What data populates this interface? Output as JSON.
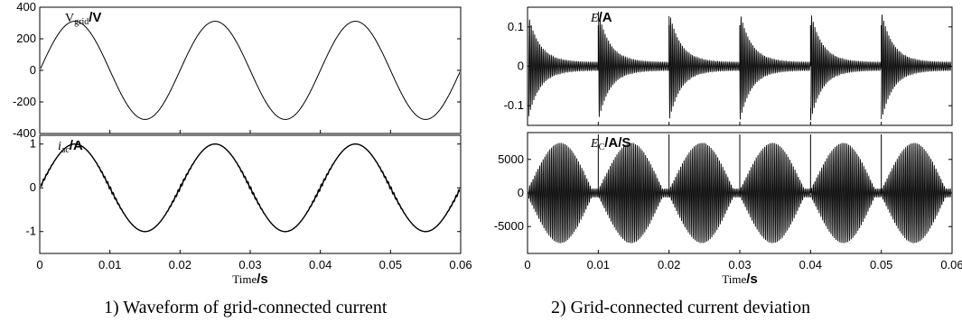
{
  "captions": {
    "left": "1) Waveform of grid-connected current",
    "right": "2) Grid-connected current deviation"
  },
  "chart_data": [
    {
      "id": "vgrid",
      "type": "line",
      "ylabel_var": "V",
      "ylabel_sub": "grid",
      "ylabel_unit": "/V",
      "ylim": [
        -400,
        400
      ],
      "yticks": [
        400,
        200,
        0,
        -200,
        -400
      ],
      "xlim": [
        0,
        0.06
      ],
      "series": [
        {
          "x": [
            0,
            0.005,
            0.015,
            0.025,
            0.035,
            0.045,
            0.055,
            0.06
          ],
          "y": [
            0,
            311,
            -311,
            311,
            -311,
            311,
            -311,
            0
          ]
        }
      ],
      "amplitude": 311,
      "frequency_hz": 50
    },
    {
      "id": "iac",
      "type": "line",
      "ylabel_var": "i",
      "ylabel_sub": "ac",
      "ylabel_unit": "/A",
      "ylim": [
        -1.5,
        1.2
      ],
      "yticks": [
        1,
        0,
        -1
      ],
      "xlim": [
        0,
        0.06
      ],
      "xticks": [
        "0",
        "0.01",
        "0.02",
        "0.03",
        "0.04",
        "0.05",
        "0.06"
      ],
      "xlabel_text": "Time",
      "xlabel_unit": "/s",
      "series": [
        {
          "x": [
            0,
            0.005,
            0.015,
            0.025,
            0.035,
            0.045,
            0.055,
            0.06
          ],
          "y": [
            0,
            1,
            -1,
            1,
            -1,
            1,
            -1,
            0
          ]
        }
      ],
      "amplitude": 1,
      "frequency_hz": 50
    },
    {
      "id": "E",
      "type": "line",
      "ylabel_var": "E",
      "ylabel_unit": "/A",
      "ylim": [
        -0.15,
        0.15
      ],
      "yticks": [
        "0.1",
        "0",
        "-0.1"
      ],
      "ytick_values": [
        0.1,
        0,
        -0.1
      ],
      "xlim": [
        0,
        0.06
      ],
      "burst_starts": [
        0,
        0.01,
        0.02,
        0.03,
        0.04,
        0.05
      ],
      "peak_amplitude": 0.13,
      "tail_amplitude": 0.01
    },
    {
      "id": "Ec",
      "type": "line",
      "ylabel_var": "E",
      "ylabel_sub": "C",
      "ylabel_unit": "/A/S",
      "ylim": [
        -9000,
        9000
      ],
      "yticks": [
        "5000",
        "0",
        "-5000"
      ],
      "ytick_values": [
        5000,
        0,
        -5000
      ],
      "xlim": [
        0,
        0.06
      ],
      "xticks": [
        "0",
        "0.01",
        "0.02",
        "0.03",
        "0.04",
        "0.05",
        "0.06"
      ],
      "xlabel_text": "Time",
      "xlabel_unit": "/s",
      "burst_starts": [
        0,
        0.01,
        0.02,
        0.03,
        0.04,
        0.05
      ],
      "peak_amplitude": 7500
    }
  ]
}
